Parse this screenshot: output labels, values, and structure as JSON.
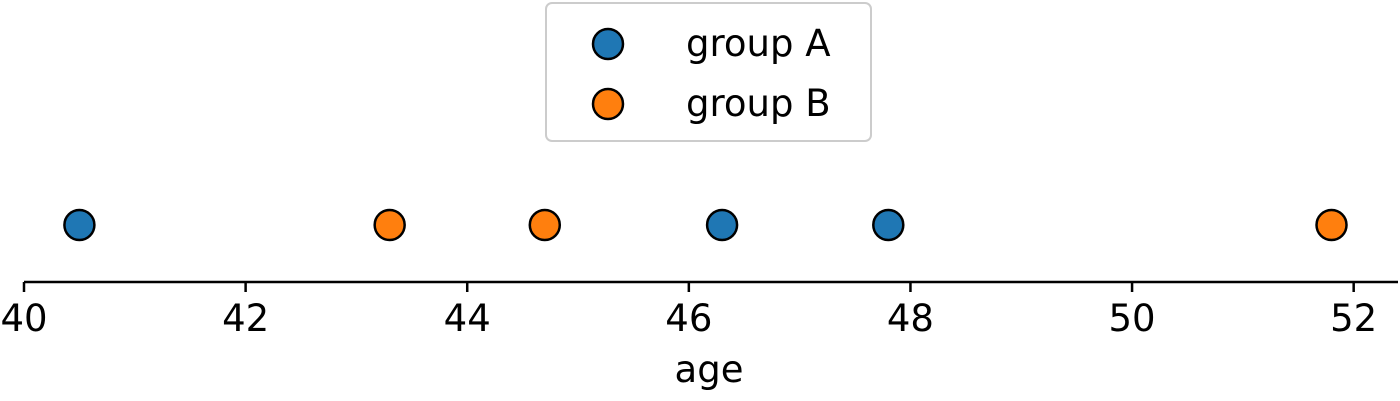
{
  "chart_data": {
    "type": "scatter",
    "title": "",
    "xlabel": "age",
    "ylabel": "",
    "xlim": [
      40,
      52.4
    ],
    "x_ticks": [
      40,
      42,
      44,
      46,
      48,
      50,
      52
    ],
    "x_tick_labels": [
      "40",
      "42",
      "44",
      "46",
      "48",
      "50",
      "52"
    ],
    "grid": false,
    "legend_position": "top-center",
    "series": [
      {
        "name": "group A",
        "color": "#1f77b4",
        "x": [
          40.5,
          46.3,
          47.8
        ]
      },
      {
        "name": "group B",
        "color": "#ff7f0e",
        "x": [
          43.3,
          44.7,
          51.8
        ]
      }
    ]
  }
}
